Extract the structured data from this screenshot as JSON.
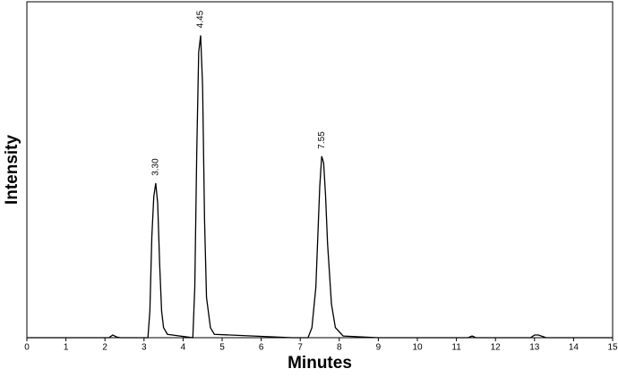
{
  "chart_data": {
    "type": "line",
    "x_label": "Minutes",
    "y_label": "Intensity",
    "x": [
      0,
      2.1,
      2.2,
      2.3,
      2.4,
      3.1,
      3.15,
      3.2,
      3.25,
      3.3,
      3.35,
      3.4,
      3.45,
      3.5,
      3.6,
      4.25,
      4.3,
      4.35,
      4.4,
      4.45,
      4.5,
      4.55,
      4.6,
      4.7,
      4.8,
      6.8,
      7.2,
      7.3,
      7.4,
      7.45,
      7.5,
      7.55,
      7.6,
      7.65,
      7.7,
      7.8,
      7.9,
      8.1,
      9.0,
      11.3,
      11.4,
      11.5,
      12.9,
      13.0,
      13.1,
      13.3,
      15
    ],
    "values": [
      0,
      0,
      0.8,
      0.2,
      0,
      0,
      8,
      30,
      42,
      46,
      40,
      22,
      8,
      3,
      1,
      0,
      15,
      55,
      85,
      90,
      75,
      35,
      12,
      3,
      1,
      0,
      0,
      3,
      15,
      30,
      45,
      54,
      52,
      42,
      28,
      10,
      3,
      0.5,
      0,
      0,
      0.5,
      0,
      0,
      0.8,
      0.8,
      0,
      0
    ],
    "color": "#000000",
    "annotations": [
      {
        "x": 3.3,
        "label": "3.30"
      },
      {
        "x": 4.45,
        "label": "4.45"
      },
      {
        "x": 7.55,
        "label": "7.55"
      }
    ],
    "xlim": [
      0,
      15
    ],
    "xticks": [
      0,
      1,
      2,
      3,
      4,
      5,
      6,
      7,
      8,
      9,
      10,
      11,
      12,
      13,
      14,
      15
    ],
    "ylim": [
      0,
      100
    ],
    "grid": false
  }
}
